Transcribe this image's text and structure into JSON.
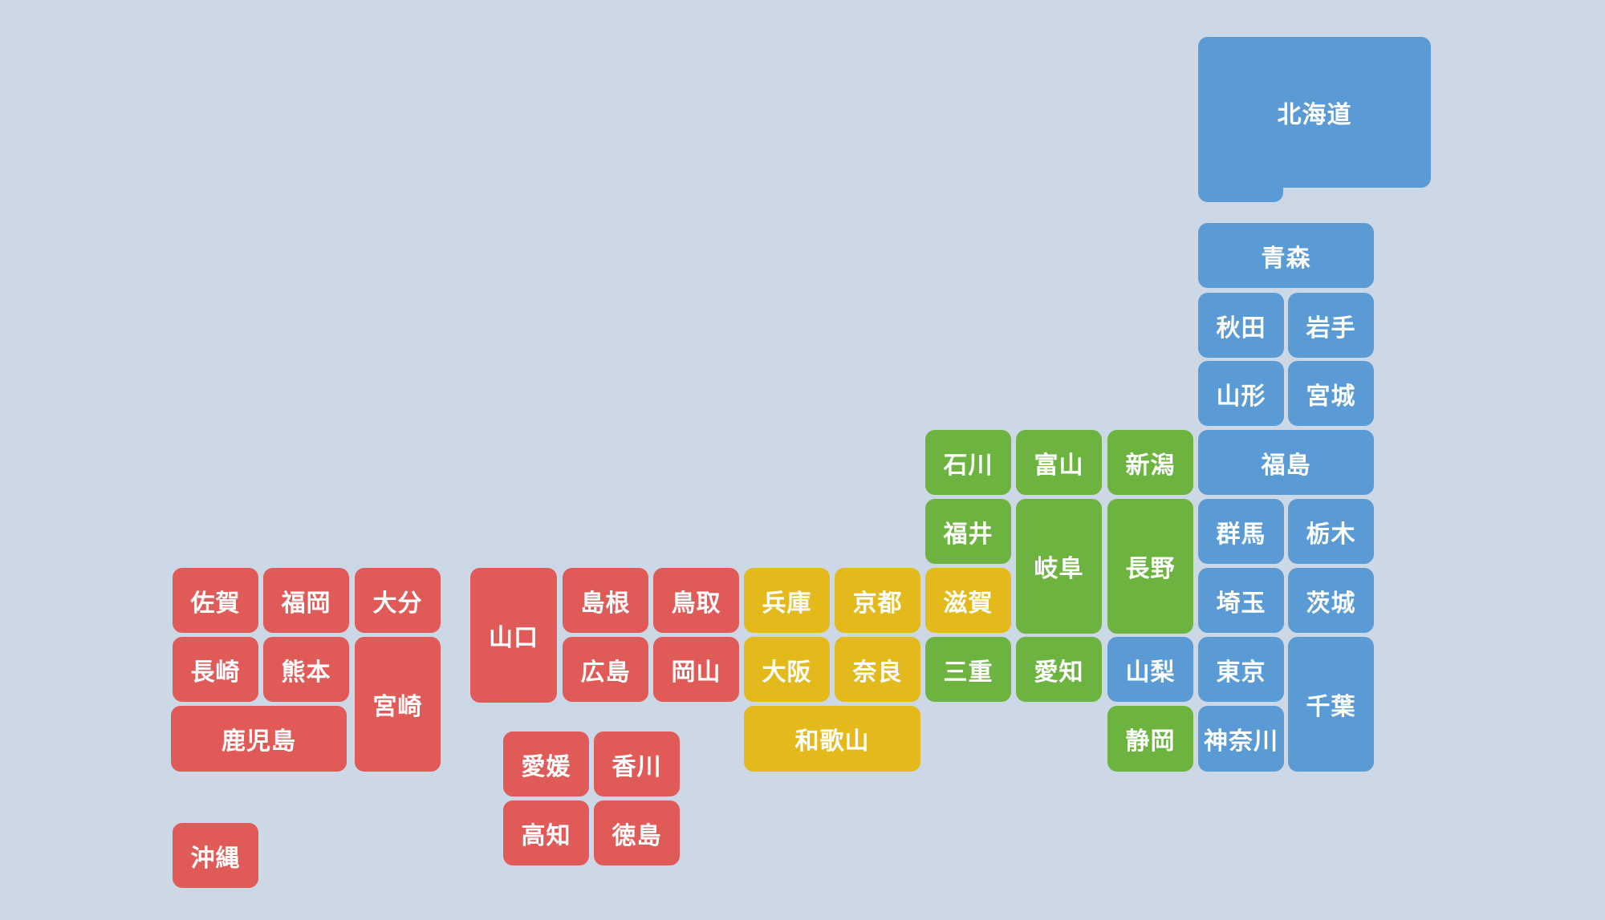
{
  "colors": {
    "background": "#ccd8e6",
    "hokkaido_tohoku_kanto": "#5b9bd5",
    "chubu": "#6cb33f",
    "kinki": "#e4b91c",
    "chugoku_shikoku_kyushu": "#e05a57"
  },
  "prefectures": [
    {
      "id": "hokkaido",
      "name": "北海道",
      "color": "#5b9bd5"
    },
    {
      "id": "aomori",
      "name": "青森",
      "color": "#5b9bd5"
    },
    {
      "id": "akita",
      "name": "秋田",
      "color": "#5b9bd5"
    },
    {
      "id": "iwate",
      "name": "岩手",
      "color": "#5b9bd5"
    },
    {
      "id": "yamagata",
      "name": "山形",
      "color": "#5b9bd5"
    },
    {
      "id": "miyagi",
      "name": "宮城",
      "color": "#5b9bd5"
    },
    {
      "id": "fukushima",
      "name": "福島",
      "color": "#5b9bd5"
    },
    {
      "id": "gunma",
      "name": "群馬",
      "color": "#5b9bd5"
    },
    {
      "id": "tochigi",
      "name": "栃木",
      "color": "#5b9bd5"
    },
    {
      "id": "saitama",
      "name": "埼玉",
      "color": "#5b9bd5"
    },
    {
      "id": "ibaraki",
      "name": "茨城",
      "color": "#5b9bd5"
    },
    {
      "id": "yamanashi",
      "name": "山梨",
      "color": "#5b9bd5"
    },
    {
      "id": "tokyo",
      "name": "東京",
      "color": "#5b9bd5"
    },
    {
      "id": "chiba",
      "name": "千葉",
      "color": "#5b9bd5"
    },
    {
      "id": "kanagawa",
      "name": "神奈川",
      "color": "#5b9bd5"
    },
    {
      "id": "ishikawa",
      "name": "石川",
      "color": "#6cb33f"
    },
    {
      "id": "toyama",
      "name": "富山",
      "color": "#6cb33f"
    },
    {
      "id": "niigata",
      "name": "新潟",
      "color": "#6cb33f"
    },
    {
      "id": "fukui",
      "name": "福井",
      "color": "#6cb33f"
    },
    {
      "id": "gifu",
      "name": "岐阜",
      "color": "#6cb33f"
    },
    {
      "id": "nagano",
      "name": "長野",
      "color": "#6cb33f"
    },
    {
      "id": "mie",
      "name": "三重",
      "color": "#6cb33f"
    },
    {
      "id": "aichi",
      "name": "愛知",
      "color": "#6cb33f"
    },
    {
      "id": "shizuoka",
      "name": "静岡",
      "color": "#6cb33f"
    },
    {
      "id": "shiga",
      "name": "滋賀",
      "color": "#e4b91c"
    },
    {
      "id": "hyogo",
      "name": "兵庫",
      "color": "#e4b91c"
    },
    {
      "id": "kyoto",
      "name": "京都",
      "color": "#e4b91c"
    },
    {
      "id": "osaka",
      "name": "大阪",
      "color": "#e4b91c"
    },
    {
      "id": "nara",
      "name": "奈良",
      "color": "#e4b91c"
    },
    {
      "id": "wakayama",
      "name": "和歌山",
      "color": "#e4b91c"
    },
    {
      "id": "yamaguchi",
      "name": "山口",
      "color": "#e05a57"
    },
    {
      "id": "shimane",
      "name": "島根",
      "color": "#e05a57"
    },
    {
      "id": "tottori",
      "name": "鳥取",
      "color": "#e05a57"
    },
    {
      "id": "hiroshima",
      "name": "広島",
      "color": "#e05a57"
    },
    {
      "id": "okayama",
      "name": "岡山",
      "color": "#e05a57"
    },
    {
      "id": "ehime",
      "name": "愛媛",
      "color": "#e05a57"
    },
    {
      "id": "kagawa",
      "name": "香川",
      "color": "#e05a57"
    },
    {
      "id": "kochi",
      "name": "高知",
      "color": "#e05a57"
    },
    {
      "id": "tokushima",
      "name": "徳島",
      "color": "#e05a57"
    },
    {
      "id": "saga",
      "name": "佐賀",
      "color": "#e05a57"
    },
    {
      "id": "fukuoka",
      "name": "福岡",
      "color": "#e05a57"
    },
    {
      "id": "oita",
      "name": "大分",
      "color": "#e05a57"
    },
    {
      "id": "nagasaki",
      "name": "長崎",
      "color": "#e05a57"
    },
    {
      "id": "kumamoto",
      "name": "熊本",
      "color": "#e05a57"
    },
    {
      "id": "miyazaki",
      "name": "宮崎",
      "color": "#e05a57"
    },
    {
      "id": "kagoshima",
      "name": "鹿児島",
      "color": "#e05a57"
    },
    {
      "id": "okinawa",
      "name": "沖縄",
      "color": "#e05a57"
    }
  ]
}
